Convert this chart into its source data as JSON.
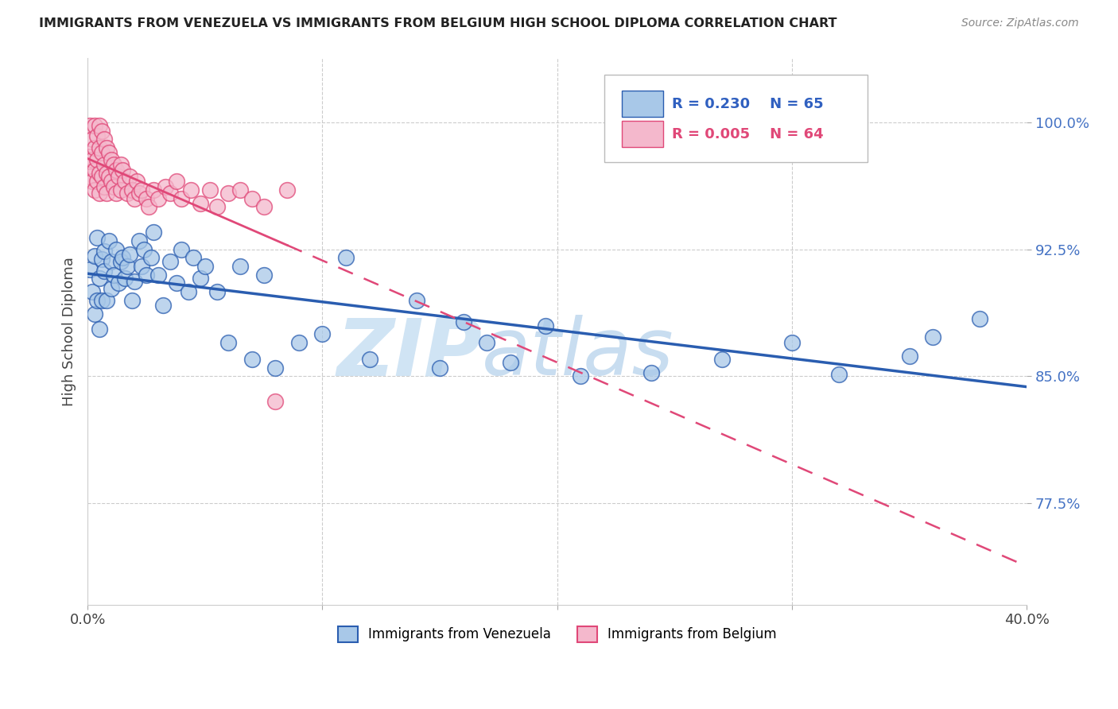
{
  "title": "IMMIGRANTS FROM VENEZUELA VS IMMIGRANTS FROM BELGIUM HIGH SCHOOL DIPLOMA CORRELATION CHART",
  "source": "Source: ZipAtlas.com",
  "ylabel": "High School Diploma",
  "ytick_labels": [
    "100.0%",
    "92.5%",
    "85.0%",
    "77.5%"
  ],
  "ytick_values": [
    1.0,
    0.925,
    0.85,
    0.775
  ],
  "xmin": 0.0,
  "xmax": 0.4,
  "ymin": 0.715,
  "ymax": 1.038,
  "legend_r_venezuela": "0.230",
  "legend_n_venezuela": "65",
  "legend_r_belgium": "0.005",
  "legend_n_belgium": "64",
  "color_venezuela": "#a8c8e8",
  "color_belgium": "#f4b8cc",
  "color_venezuela_line": "#2a5db0",
  "color_belgium_line": "#e04878",
  "watermark_zip": "ZIP",
  "watermark_atlas": "atlas",
  "venezuela_x": [
    0.001,
    0.002,
    0.003,
    0.003,
    0.004,
    0.004,
    0.005,
    0.005,
    0.006,
    0.006,
    0.007,
    0.007,
    0.008,
    0.009,
    0.01,
    0.01,
    0.011,
    0.012,
    0.013,
    0.014,
    0.015,
    0.016,
    0.017,
    0.018,
    0.019,
    0.02,
    0.022,
    0.023,
    0.024,
    0.025,
    0.027,
    0.028,
    0.03,
    0.032,
    0.035,
    0.038,
    0.04,
    0.043,
    0.045,
    0.048,
    0.05,
    0.055,
    0.06,
    0.065,
    0.07,
    0.075,
    0.08,
    0.09,
    0.1,
    0.11,
    0.12,
    0.14,
    0.15,
    0.16,
    0.17,
    0.18,
    0.195,
    0.21,
    0.24,
    0.27,
    0.3,
    0.32,
    0.35,
    0.36,
    0.38
  ],
  "venezuela_y": [
    0.913,
    0.9,
    0.887,
    0.921,
    0.895,
    0.932,
    0.908,
    0.878,
    0.895,
    0.919,
    0.912,
    0.924,
    0.895,
    0.93,
    0.918,
    0.902,
    0.91,
    0.925,
    0.905,
    0.918,
    0.92,
    0.908,
    0.915,
    0.922,
    0.895,
    0.906,
    0.93,
    0.915,
    0.925,
    0.91,
    0.92,
    0.935,
    0.91,
    0.892,
    0.918,
    0.905,
    0.925,
    0.9,
    0.92,
    0.908,
    0.915,
    0.9,
    0.87,
    0.915,
    0.86,
    0.91,
    0.855,
    0.87,
    0.875,
    0.92,
    0.86,
    0.895,
    0.855,
    0.882,
    0.87,
    0.858,
    0.88,
    0.85,
    0.852,
    0.86,
    0.87,
    0.851,
    0.862,
    0.873,
    0.884
  ],
  "belgium_x": [
    0.001,
    0.001,
    0.001,
    0.002,
    0.002,
    0.002,
    0.003,
    0.003,
    0.003,
    0.003,
    0.004,
    0.004,
    0.004,
    0.005,
    0.005,
    0.005,
    0.005,
    0.006,
    0.006,
    0.006,
    0.007,
    0.007,
    0.007,
    0.008,
    0.008,
    0.008,
    0.009,
    0.009,
    0.01,
    0.01,
    0.011,
    0.011,
    0.012,
    0.012,
    0.013,
    0.014,
    0.014,
    0.015,
    0.016,
    0.017,
    0.018,
    0.019,
    0.02,
    0.021,
    0.022,
    0.023,
    0.025,
    0.026,
    0.028,
    0.03,
    0.033,
    0.035,
    0.038,
    0.04,
    0.044,
    0.048,
    0.052,
    0.055,
    0.06,
    0.065,
    0.07,
    0.075,
    0.08,
    0.085
  ],
  "belgium_y": [
    0.998,
    0.98,
    0.968,
    0.99,
    0.978,
    0.965,
    0.998,
    0.985,
    0.972,
    0.96,
    0.992,
    0.978,
    0.965,
    0.998,
    0.985,
    0.97,
    0.958,
    0.995,
    0.982,
    0.968,
    0.99,
    0.975,
    0.962,
    0.985,
    0.97,
    0.958,
    0.982,
    0.968,
    0.978,
    0.965,
    0.975,
    0.962,
    0.972,
    0.958,
    0.968,
    0.975,
    0.96,
    0.972,
    0.965,
    0.958,
    0.968,
    0.96,
    0.955,
    0.965,
    0.958,
    0.96,
    0.955,
    0.95,
    0.96,
    0.955,
    0.962,
    0.958,
    0.965,
    0.955,
    0.96,
    0.952,
    0.96,
    0.95,
    0.958,
    0.96,
    0.955,
    0.95,
    0.835,
    0.96
  ]
}
